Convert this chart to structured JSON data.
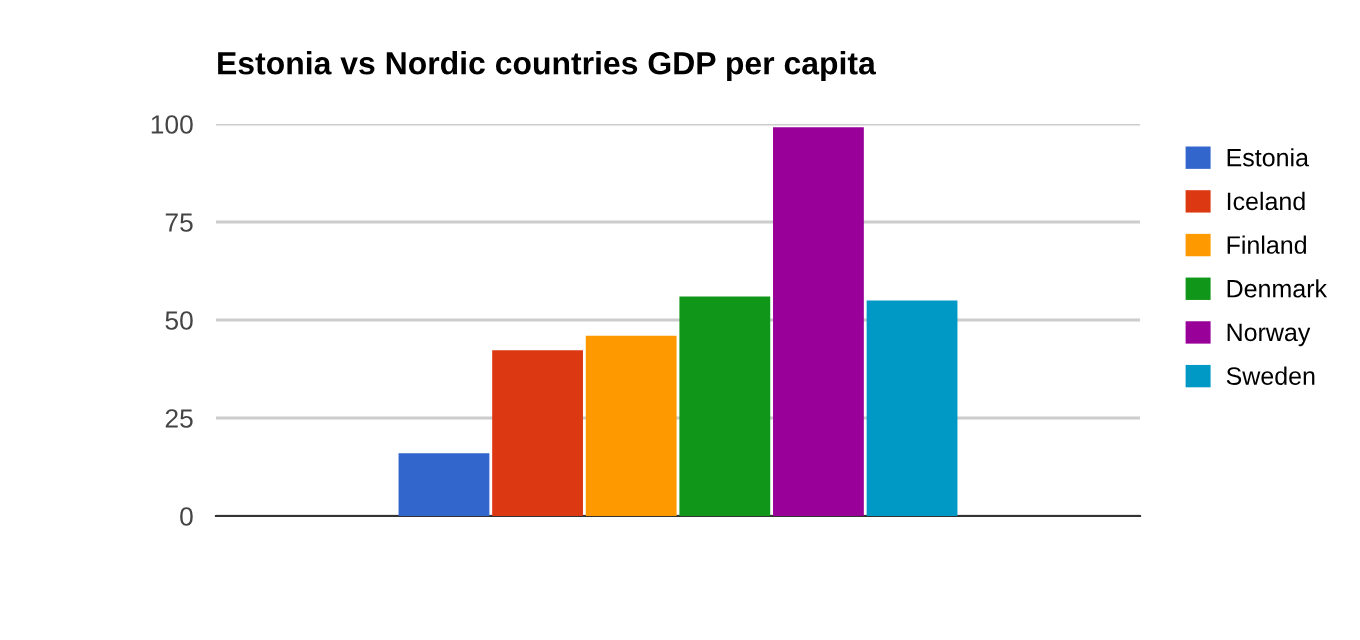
{
  "chart_data": {
    "type": "bar",
    "title": "Estonia vs Nordic countries GDP per capita",
    "categories": [
      null
    ],
    "series": [
      {
        "name": "Estonia",
        "color": "#3366cc",
        "values": [
          16
        ]
      },
      {
        "name": "Iceland",
        "color": "#dc3912",
        "values": [
          42.3
        ]
      },
      {
        "name": "Finland",
        "color": "#ff9900",
        "values": [
          46
        ]
      },
      {
        "name": "Denmark",
        "color": "#109618",
        "values": [
          56
        ]
      },
      {
        "name": "Norway",
        "color": "#990099",
        "values": [
          99.2
        ]
      },
      {
        "name": "Sweden",
        "color": "#0099c6",
        "values": [
          55
        ]
      }
    ],
    "ylim": [
      0,
      100
    ],
    "yticks": [
      0,
      25,
      50,
      75,
      100
    ],
    "grid": "y",
    "legend": "top right"
  }
}
